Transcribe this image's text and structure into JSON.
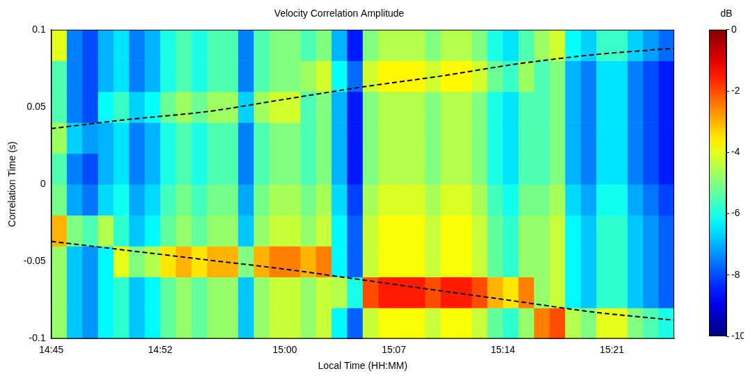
{
  "chart_data": {
    "type": "heatmap",
    "title": "Velocity Correlation Amplitude",
    "x_label": "Local Time (HH:MM)",
    "y_label": "Correlation Time (s)",
    "xlim": [
      885,
      925
    ],
    "xticks": [
      {
        "value": 885,
        "label": "14:45"
      },
      {
        "value": 892,
        "label": "14:52"
      },
      {
        "value": 900,
        "label": "15:00"
      },
      {
        "value": 907,
        "label": "15:07"
      },
      {
        "value": 914,
        "label": "15:14"
      },
      {
        "value": 921,
        "label": "15:21"
      }
    ],
    "ylim": [
      -0.1,
      0.1
    ],
    "yticks": [
      -0.1,
      -0.05,
      0,
      0.05,
      0.1
    ],
    "grid": false,
    "x": [
      885.5,
      886.5,
      887.5,
      888.5,
      889.5,
      890.5,
      891.5,
      892.5,
      893.5,
      894.5,
      895.5,
      896.5,
      897.5,
      898.5,
      899.5,
      900.5,
      901.5,
      902.5,
      903.5,
      904.5,
      905.5,
      906.5,
      907.5,
      908.5,
      909.5,
      910.5,
      911.5,
      912.5,
      913.5,
      914.5,
      915.5,
      916.5,
      917.5,
      918.5,
      919.5,
      920.5,
      921.5,
      922.5,
      923.5,
      924.5
    ],
    "y": [
      -0.09,
      -0.07,
      -0.05,
      -0.03,
      -0.01,
      0.01,
      0.03,
      0.05,
      0.07,
      0.09
    ],
    "z": [
      [
        -4.8,
        -6.8,
        -7.3,
        -6.3,
        -5.8,
        -6.8,
        -6.3,
        -5.3,
        -4.8,
        -5.3,
        -4.8,
        -4.8,
        -6.8,
        -4.8,
        -4.3,
        -4.3,
        -4.8,
        -4.3,
        -6.3,
        -7.8,
        -4.3,
        -3.8,
        -3.8,
        -3.8,
        -4.3,
        -3.8,
        -3.8,
        -4.3,
        -5.3,
        -5.8,
        -4.8,
        -2.5,
        -2,
        -4.5,
        -5,
        -4,
        -4,
        -5,
        -5.5,
        -6
      ],
      [
        -4.8,
        -6.8,
        -7.3,
        -6.3,
        -5.8,
        -6.8,
        -6.3,
        -5.3,
        -4.8,
        -5.3,
        -4.8,
        -4.8,
        -6.8,
        -4.8,
        -4.3,
        -4.3,
        -4.8,
        -4.3,
        -4.5,
        -6,
        -2,
        -1.5,
        -1.5,
        -1.5,
        -2,
        -1.5,
        -1.5,
        -2,
        -3,
        -3.5,
        -2.5,
        -4.8,
        -4.3,
        -6.3,
        -6.8,
        -5.8,
        -5.8,
        -6.8,
        -7.3,
        -7.8
      ],
      [
        -4.8,
        -6.8,
        -7.3,
        -6.3,
        -4,
        -5,
        -4.5,
        -3.5,
        -3,
        -3.5,
        -3,
        -3,
        -5,
        -3,
        -2.5,
        -2.5,
        -3,
        -2.5,
        -6.3,
        -7.8,
        -4.3,
        -3.8,
        -3.8,
        -3.8,
        -4.3,
        -3.8,
        -3.8,
        -4.3,
        -5.3,
        -5.8,
        -4.8,
        -4.8,
        -4.3,
        -6.3,
        -6.8,
        -5.8,
        -5.8,
        -6.8,
        -7.3,
        -7.8
      ],
      [
        -3,
        -5,
        -5.5,
        -4.5,
        -5.8,
        -6.8,
        -6.3,
        -5.3,
        -4.8,
        -5.3,
        -4.8,
        -4.8,
        -6.8,
        -4.8,
        -4.3,
        -4.3,
        -4.8,
        -4.3,
        -6.3,
        -7.8,
        -4.3,
        -3.8,
        -3.8,
        -3.8,
        -4.3,
        -3.8,
        -3.8,
        -4.3,
        -5.3,
        -5.8,
        -4.8,
        -4.8,
        -4.3,
        -6.3,
        -6.8,
        -5.8,
        -5.8,
        -6.8,
        -7.3,
        -7.8
      ],
      [
        -5.1,
        -7.1,
        -7.6,
        -6.6,
        -6.1,
        -7.1,
        -6.6,
        -5.6,
        -5.1,
        -5.6,
        -5.1,
        -5.1,
        -7.1,
        -5.1,
        -4.6,
        -4.6,
        -5.1,
        -4.6,
        -6.6,
        -8.1,
        -4.6,
        -4.1,
        -4.1,
        -4.1,
        -4.6,
        -4.1,
        -4.1,
        -4.6,
        -5.6,
        -6.1,
        -5.1,
        -5.1,
        -4.6,
        -6.6,
        -7.1,
        -6.1,
        -6.1,
        -7.1,
        -7.6,
        -8.1
      ],
      [
        -5.5,
        -7.5,
        -8,
        -7,
        -6.5,
        -7.5,
        -7,
        -6,
        -5.5,
        -6,
        -5.5,
        -5.5,
        -7.5,
        -5.5,
        -5,
        -5,
        -5.5,
        -5,
        -7,
        -8.5,
        -5,
        -4.5,
        -4.5,
        -4.5,
        -5,
        -4.5,
        -4.5,
        -5,
        -6,
        -6.5,
        -5.5,
        -5.5,
        -5,
        -7,
        -7.5,
        -6.5,
        -6.5,
        -7.5,
        -8,
        -8.5
      ],
      [
        -4.7,
        -6.7,
        -7.2,
        -7,
        -6.5,
        -7.5,
        -7,
        -6,
        -5.5,
        -6,
        -5.5,
        -5.5,
        -7.5,
        -5.5,
        -5,
        -5,
        -5.5,
        -5,
        -7,
        -8.5,
        -5,
        -4.5,
        -4.5,
        -4.5,
        -5,
        -4.5,
        -4.5,
        -5,
        -6,
        -6.5,
        -5.5,
        -5.5,
        -5,
        -7,
        -7.5,
        -6.5,
        -6.5,
        -7.5,
        -8,
        -8.5
      ],
      [
        -5.5,
        -7.5,
        -8,
        -6.2,
        -5.7,
        -6.7,
        -6.2,
        -5.2,
        -4.7,
        -5.2,
        -4.7,
        -4.7,
        -6.7,
        -4.7,
        -4.2,
        -4.2,
        -5.5,
        -5,
        -7,
        -8.5,
        -5,
        -4.5,
        -4.5,
        -4.5,
        -5,
        -4.5,
        -4.5,
        -5,
        -6,
        -6.5,
        -5.5,
        -5.5,
        -5,
        -7,
        -7.5,
        -6.5,
        -6.5,
        -7.5,
        -8,
        -8.5
      ],
      [
        -5.5,
        -7.5,
        -8,
        -7,
        -6.5,
        -7.5,
        -7,
        -6,
        -5.5,
        -6,
        -5.5,
        -5.5,
        -7.5,
        -5.5,
        -5,
        -5,
        -4.7,
        -4.2,
        -6.2,
        -7.7,
        -4.2,
        -3.7,
        -3.7,
        -3.7,
        -4.2,
        -3.7,
        -3.7,
        -4.2,
        -5.2,
        -5.7,
        -4.7,
        -5.5,
        -5,
        -7,
        -7.5,
        -6.5,
        -6.5,
        -7.5,
        -8,
        -8.5
      ],
      [
        -4,
        -7.5,
        -8,
        -7,
        -6.5,
        -7.5,
        -7,
        -6,
        -5.5,
        -6,
        -5.5,
        -5.5,
        -7.5,
        -5.5,
        -5,
        -5,
        -5.5,
        -5,
        -7,
        -8.5,
        -5,
        -4.5,
        -4.5,
        -4.5,
        -5,
        -4.5,
        -4.5,
        -5,
        -6,
        -6.5,
        -5.5,
        -4.7,
        -4.2,
        -6.2,
        -6.7,
        -5.7,
        -5.7,
        -6.7,
        -7.2,
        -7.7
      ]
    ],
    "colorbar": {
      "label": "dB",
      "range": [
        -10,
        0
      ],
      "ticks": [
        -10,
        -8,
        -6,
        -4,
        -2,
        0
      ]
    },
    "series": [
      {
        "color": "#000000",
        "line_style": "dashed",
        "x": [
          885,
          890,
          895,
          900,
          905,
          910,
          915,
          920,
          925
        ],
        "values": [
          0.036,
          0.042,
          0.047,
          0.055,
          0.063,
          0.07,
          0.078,
          0.084,
          0.088
        ]
      },
      {
        "color": "#000000",
        "line_style": "dashed",
        "x": [
          885,
          890,
          895,
          900,
          905,
          910,
          915,
          920,
          925
        ],
        "values": [
          -0.037,
          -0.043,
          -0.049,
          -0.055,
          -0.062,
          -0.069,
          -0.076,
          -0.083,
          -0.088
        ]
      }
    ]
  }
}
